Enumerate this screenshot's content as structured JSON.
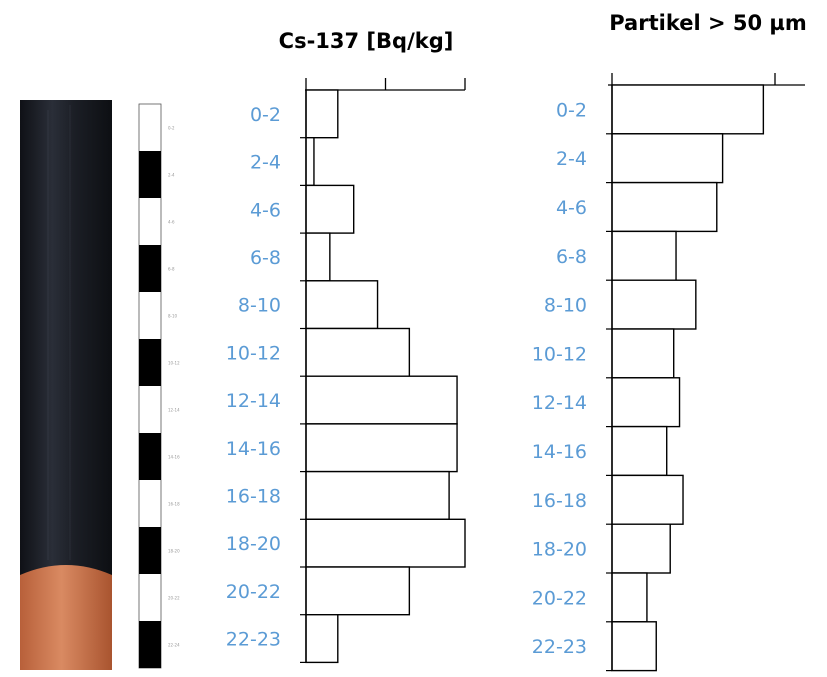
{
  "chart_data": [
    {
      "type": "bar",
      "orientation": "horizontal",
      "title": "Cs-137 [Bq/kg]",
      "categories": [
        "0-2",
        "2-4",
        "4-6",
        "6-8",
        "8-10",
        "10-12",
        "12-14",
        "14-16",
        "16-18",
        "18-20",
        "20-22",
        "22-23"
      ],
      "values": [
        4,
        1,
        6,
        3,
        9,
        13,
        19,
        19,
        18,
        20,
        13,
        4
      ],
      "xlim": [
        0,
        20
      ],
      "x_ticks": [
        10,
        20
      ],
      "grid": false,
      "legend": "none"
    },
    {
      "type": "bar",
      "orientation": "horizontal",
      "title": "Partikel > 50 µm",
      "categories": [
        "0-2",
        "2-4",
        "4-6",
        "6-8",
        "8-10",
        "10-12",
        "12-14",
        "14-16",
        "16-18",
        "18-20",
        "20-22",
        "22-23"
      ],
      "values": [
        13,
        9.5,
        9,
        5.5,
        7.2,
        5.3,
        5.8,
        4.7,
        6.1,
        5,
        3,
        3.8
      ],
      "xlim": [
        0,
        14
      ],
      "x_ticks": [
        14
      ],
      "grid": false,
      "legend": "none"
    }
  ],
  "core_scale": {
    "labels": [
      "0-2",
      "2-4",
      "4-6",
      "6-8",
      "8-10",
      "10-12",
      "12-14",
      "14-16",
      "16-18",
      "18-20",
      "20-22",
      "22-24"
    ]
  },
  "colors": {
    "bar_stroke": "#000000",
    "depth_label": "#5b9bd5",
    "core_dark": "#1a1d24",
    "core_base": "#c87a55"
  }
}
